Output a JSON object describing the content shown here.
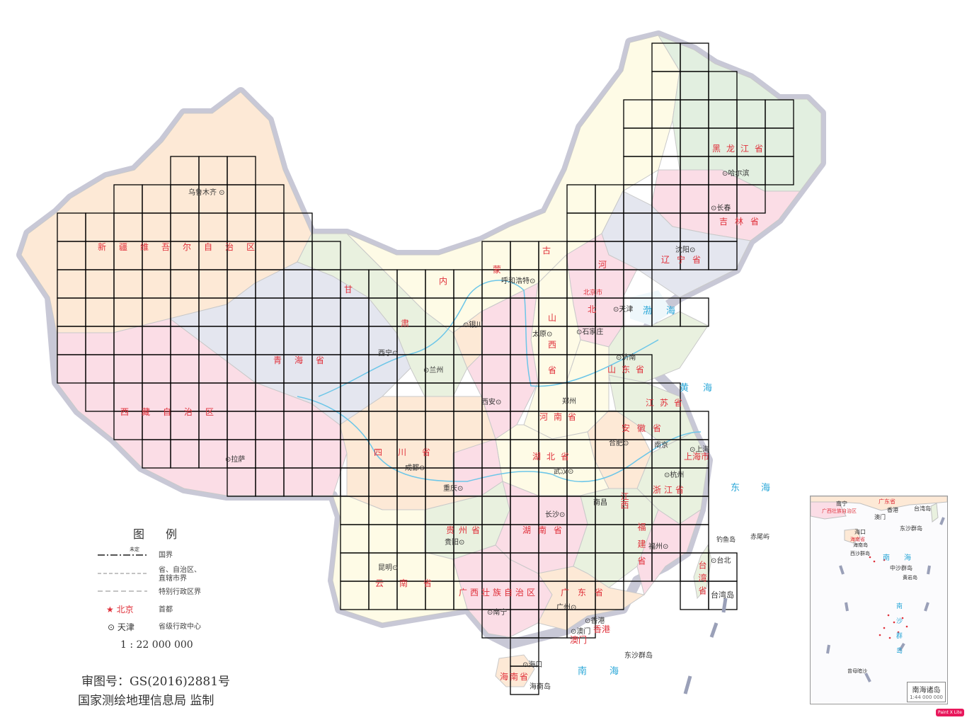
{
  "provinces": [
    {
      "id": "xinjiang",
      "name": "新疆维吾尔自治区"
    },
    {
      "id": "xizang",
      "name": "西藏自治区"
    },
    {
      "id": "qinghai",
      "name": "青海省"
    },
    {
      "id": "gansu",
      "name": "甘"
    },
    {
      "id": "gansu2",
      "name": "肃"
    },
    {
      "id": "neimenggu",
      "name": "内"
    },
    {
      "id": "neimenggu2",
      "name": "蒙"
    },
    {
      "id": "neimenggu3",
      "name": "古"
    },
    {
      "id": "heilongjiang",
      "name": "黑龙江省"
    },
    {
      "id": "jilin",
      "name": "吉林省"
    },
    {
      "id": "liaoning",
      "name": "辽宁省"
    },
    {
      "id": "hebei",
      "name": "河"
    },
    {
      "id": "hebei2",
      "name": "北"
    },
    {
      "id": "beijing",
      "name": "北京市"
    },
    {
      "id": "shanxi",
      "name": "山"
    },
    {
      "id": "shanxi2",
      "name": "西"
    },
    {
      "id": "shanxi3",
      "name": "省"
    },
    {
      "id": "shandong",
      "name": "山东省"
    },
    {
      "id": "henan",
      "name": "河南省"
    },
    {
      "id": "jiangsu",
      "name": "江苏省"
    },
    {
      "id": "anhui",
      "name": "安徽省"
    },
    {
      "id": "shanghai",
      "name": "上海市"
    },
    {
      "id": "zhejiang",
      "name": "浙江省"
    },
    {
      "id": "sichuan",
      "name": "四川省"
    },
    {
      "id": "hubei",
      "name": "湖北省"
    },
    {
      "id": "hunan",
      "name": "湖南省"
    },
    {
      "id": "guizhou",
      "name": "贵州省"
    },
    {
      "id": "yunnan",
      "name": "云南省"
    },
    {
      "id": "guangxi",
      "name": "广西壮族自治区"
    },
    {
      "id": "guangdong",
      "name": "广东省"
    },
    {
      "id": "jiangxi",
      "name": "江西"
    },
    {
      "id": "fujian",
      "name": "福建省"
    },
    {
      "id": "taiwan",
      "name": "台湾省"
    },
    {
      "id": "hainan",
      "name": "海南省"
    },
    {
      "id": "xianggang",
      "name": "香港"
    },
    {
      "id": "aomen",
      "name": "澳门"
    }
  ],
  "cities": [
    {
      "id": "urumqi",
      "name": "乌鲁木齐"
    },
    {
      "id": "lasa",
      "name": "拉萨"
    },
    {
      "id": "xining",
      "name": "西宁"
    },
    {
      "id": "lanzhou",
      "name": "兰州"
    },
    {
      "id": "yinchuan",
      "name": "银川"
    },
    {
      "id": "huhehaote",
      "name": "呼和浩特"
    },
    {
      "id": "haerbin",
      "name": "哈尔滨"
    },
    {
      "id": "changchun",
      "name": "长春"
    },
    {
      "id": "shenyang",
      "name": "沈阳"
    },
    {
      "id": "tianjin",
      "name": "天津"
    },
    {
      "id": "shijiazhuang",
      "name": "石家庄"
    },
    {
      "id": "taiyuan",
      "name": "太原"
    },
    {
      "id": "jinan",
      "name": "济南"
    },
    {
      "id": "zhengzhou",
      "name": "郑州"
    },
    {
      "id": "xian",
      "name": "西安"
    },
    {
      "id": "hefei",
      "name": "合肥"
    },
    {
      "id": "nanjing",
      "name": "南京"
    },
    {
      "id": "shanghaicity",
      "name": "上海"
    },
    {
      "id": "hangzhou",
      "name": "杭州"
    },
    {
      "id": "wuhan",
      "name": "武汉"
    },
    {
      "id": "chengdu",
      "name": "成都"
    },
    {
      "id": "chongqing",
      "name": "重庆"
    },
    {
      "id": "changsha",
      "name": "长沙"
    },
    {
      "id": "nanchang",
      "name": "南昌"
    },
    {
      "id": "guiyang",
      "name": "贵阳"
    },
    {
      "id": "kunming",
      "name": "昆明"
    },
    {
      "id": "fuzhou",
      "name": "福州"
    },
    {
      "id": "taibei",
      "name": "台北"
    },
    {
      "id": "guangzhou",
      "name": "广州"
    },
    {
      "id": "nanning",
      "name": "南宁"
    },
    {
      "id": "haikou",
      "name": "海口"
    },
    {
      "id": "xianggangcity",
      "name": "香港"
    },
    {
      "id": "aomencity",
      "name": "澳门"
    }
  ],
  "islands": [
    {
      "id": "taiwandao",
      "name": "台湾岛"
    },
    {
      "id": "hainandao",
      "name": "海南岛"
    },
    {
      "id": "dongsha",
      "name": "东沙群岛"
    },
    {
      "id": "diaoyu",
      "name": "钓鱼岛"
    },
    {
      "id": "chiwei",
      "name": "赤尾屿"
    }
  ],
  "seas": [
    {
      "id": "bohai",
      "name": "渤海"
    },
    {
      "id": "huanghai",
      "name": "黄海"
    },
    {
      "id": "donghai",
      "name": "东海"
    },
    {
      "id": "nanhai",
      "name": "南海"
    }
  ],
  "legend": {
    "title": "图例",
    "undetermined": "未定",
    "items": [
      {
        "id": "national-border",
        "label": "国界"
      },
      {
        "id": "province-border",
        "label": "省、自治区、\n直辖市界"
      },
      {
        "id": "sar-border",
        "label": "特别行政区界"
      },
      {
        "id": "capital",
        "symbol": "★",
        "name": "北京",
        "label": "首都"
      },
      {
        "id": "provincial-capital",
        "symbol": "⊙",
        "name": "天津",
        "label": "省级行政中心"
      }
    ],
    "scale": "1 : 22 000 000"
  },
  "footer": {
    "approval": "审图号：GS(2016)2881号",
    "agency": "国家测绘地理信息局 监制"
  },
  "inset": {
    "title": "南海诸岛",
    "scale": "1:44 000 000",
    "labels": [
      {
        "id": "nanning",
        "name": "南宁"
      },
      {
        "id": "guangdong",
        "name": "广东省"
      },
      {
        "id": "guangxi",
        "name": "广西壮族自治区"
      },
      {
        "id": "xianggang",
        "name": "香港"
      },
      {
        "id": "aomen",
        "name": "澳门"
      },
      {
        "id": "taiwandao",
        "name": "台湾岛"
      },
      {
        "id": "haikou",
        "name": "海口"
      },
      {
        "id": "hainan",
        "name": "海南省"
      },
      {
        "id": "dongsha",
        "name": "东沙群岛"
      },
      {
        "id": "hainandao",
        "name": "海南岛"
      },
      {
        "id": "xisha",
        "name": "西沙群岛"
      },
      {
        "id": "zhongsha",
        "name": "中沙群岛"
      },
      {
        "id": "huangyan",
        "name": "黄岩岛"
      },
      {
        "id": "nansha",
        "name": "南沙群岛"
      },
      {
        "id": "nanhai",
        "name": "南海"
      },
      {
        "id": "zengmuansha",
        "name": "曾母暗沙"
      }
    ]
  },
  "colors": {
    "xinjiang": "#fde9d6",
    "xizang": "#fbdde6",
    "qinghai": "#e4e6ef",
    "gansu": "#e9f1df",
    "neimenggu": "#fefbe6",
    "heilongjiang": "#e2efe0",
    "jilin": "#fbdde6",
    "liaoning": "#e4e6ef",
    "sichuan": "#fde9d6",
    "yunnan": "#fefbe6",
    "guangxi": "#fbdde6",
    "border": "#b9b9c9",
    "province_label": "#e0303a",
    "sea_label": "#2aa7d8",
    "grid": "#000000"
  },
  "watermark": "Paint X Lite"
}
